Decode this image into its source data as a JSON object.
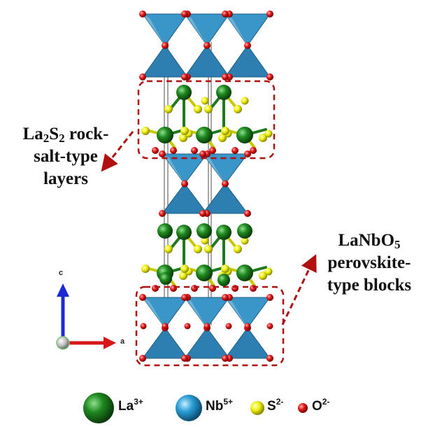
{
  "labels": {
    "rocksalt": {
      "line1_pre": "La",
      "line1_sub1": "2",
      "line1_mid": "S",
      "line1_sub2": "2",
      "line1_post": " rock-",
      "line2": "salt-type",
      "line3": "layers"
    },
    "perovskite": {
      "line1_pre": "LaNbO",
      "line1_sub": "5",
      "line2": "perovskite-",
      "line3": "type blocks"
    }
  },
  "axes": {
    "c": "c",
    "a": "a"
  },
  "legend": [
    {
      "ion": "La",
      "charge": "3+",
      "color": "#1f7a1f"
    },
    {
      "ion": "Nb",
      "charge": "5+",
      "color": "#2a9fd6"
    },
    {
      "ion": "S",
      "charge": "2-",
      "color": "#e8e800"
    },
    {
      "ion": "O",
      "charge": "2-",
      "color": "#e01818"
    }
  ],
  "colors": {
    "octahedron": "#2f86b8",
    "la": "#1f7a1f",
    "s": "#e8e800",
    "o": "#e01818",
    "dashed_box": "#b01010",
    "axis_c": "#1a2bd6",
    "axis_a": "#d81818"
  }
}
